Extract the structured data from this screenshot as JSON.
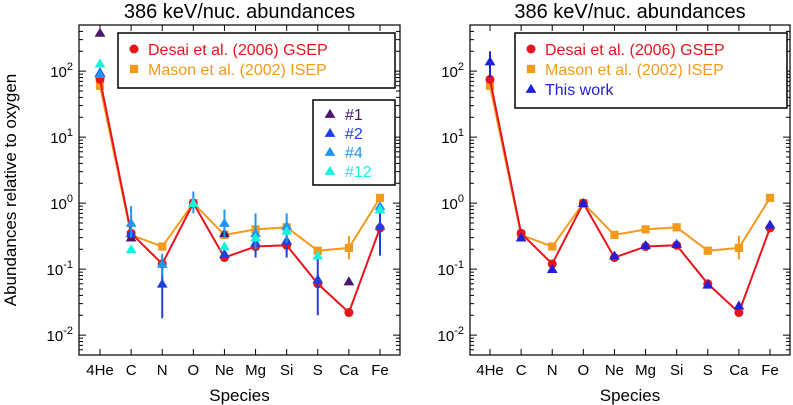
{
  "chart_data": [
    {
      "type": "scatter",
      "title": "386 keV/nuc. abundances",
      "xlabel": "Species",
      "ylabel": "Abundances relative to oxygen",
      "yscale": "log",
      "ylim": [
        0.005,
        500
      ],
      "yticks": [
        {
          "value": 0.01,
          "base": "10",
          "exp": "-2"
        },
        {
          "value": 0.1,
          "base": "10",
          "exp": "-1"
        },
        {
          "value": 1,
          "base": "10",
          "exp": "0"
        },
        {
          "value": 10,
          "base": "10",
          "exp": "1"
        },
        {
          "value": 100,
          "base": "10",
          "exp": "2"
        }
      ],
      "categories": [
        "4He",
        "C",
        "N",
        "O",
        "Ne",
        "Mg",
        "Si",
        "S",
        "Ca",
        "Fe"
      ],
      "legend_main": "top-right",
      "legend_events": "right",
      "series": [
        {
          "name": "Desai et al. (2006) GSEP",
          "color": "#e8141c",
          "marker": "circle",
          "line": true,
          "legend": "main",
          "values": [
            75,
            0.35,
            0.12,
            1.0,
            0.15,
            0.22,
            0.23,
            0.06,
            0.022,
            0.42
          ]
        },
        {
          "name": "Mason et al. (2002) ISEP",
          "color": "#f39a1c",
          "marker": "square",
          "line": true,
          "legend": "main",
          "values": [
            60,
            0.33,
            0.22,
            1.0,
            0.33,
            0.4,
            0.43,
            0.19,
            0.21,
            1.2
          ],
          "errors": [
            null,
            null,
            null,
            null,
            null,
            null,
            null,
            null,
            [
              0.14,
              0.32
            ],
            null
          ]
        },
        {
          "name": "#1",
          "color": "#4a1670",
          "marker": "triangle",
          "line": false,
          "legend": "events",
          "values": [
            380,
            0.3,
            null,
            null,
            0.35,
            null,
            0.27,
            null,
            0.065,
            null
          ]
        },
        {
          "name": "#2",
          "color": "#1f3fe0",
          "marker": "triangle",
          "line": false,
          "legend": "events",
          "values": [
            95,
            0.35,
            0.06,
            1.0,
            0.17,
            0.25,
            0.27,
            0.07,
            null,
            0.45
          ],
          "errors": [
            null,
            null,
            [
              0.018,
              0.15
            ],
            null,
            null,
            [
              0.15,
              0.42
            ],
            [
              0.15,
              0.42
            ],
            [
              0.02,
              0.17
            ],
            null,
            [
              0.16,
              0.9
            ]
          ]
        },
        {
          "name": "#4",
          "color": "#1e95f0",
          "marker": "triangle",
          "line": false,
          "legend": "events",
          "values": [
            90,
            0.5,
            0.12,
            1.0,
            0.5,
            0.35,
            0.45,
            null,
            null,
            0.9
          ],
          "errors": [
            null,
            [
              0.3,
              0.9
            ],
            [
              0.08,
              0.17
            ],
            [
              0.7,
              1.5
            ],
            [
              0.3,
              0.8
            ],
            [
              0.2,
              0.7
            ],
            [
              0.25,
              0.7
            ],
            null,
            null,
            null
          ]
        },
        {
          "name": "#12",
          "color": "#18f0e0",
          "marker": "triangle",
          "line": false,
          "legend": "events",
          "values": [
            130,
            0.2,
            null,
            1.0,
            0.22,
            0.3,
            0.38,
            0.16,
            null,
            0.8
          ]
        }
      ]
    },
    {
      "type": "scatter",
      "title": "386 keV/nuc. abundances",
      "xlabel": "Species",
      "ylabel": "",
      "yscale": "log",
      "ylim": [
        0.005,
        500
      ],
      "yticks": [
        {
          "value": 0.01,
          "base": "10",
          "exp": "-2"
        },
        {
          "value": 0.1,
          "base": "10",
          "exp": "-1"
        },
        {
          "value": 1,
          "base": "10",
          "exp": "0"
        },
        {
          "value": 10,
          "base": "10",
          "exp": "1"
        },
        {
          "value": 100,
          "base": "10",
          "exp": "2"
        }
      ],
      "categories": [
        "4He",
        "C",
        "N",
        "O",
        "Ne",
        "Mg",
        "Si",
        "S",
        "Ca",
        "Fe"
      ],
      "legend_main": "top-right",
      "series": [
        {
          "name": "Desai et al. (2006) GSEP",
          "color": "#e8141c",
          "marker": "circle",
          "line": true,
          "legend": "main",
          "values": [
            75,
            0.35,
            0.12,
            1.0,
            0.15,
            0.22,
            0.23,
            0.06,
            0.022,
            0.42
          ]
        },
        {
          "name": "Mason et al. (2002) ISEP",
          "color": "#f39a1c",
          "marker": "square",
          "line": true,
          "legend": "main",
          "values": [
            60,
            0.33,
            0.22,
            1.0,
            0.33,
            0.4,
            0.43,
            0.19,
            0.21,
            1.2
          ],
          "errors": [
            null,
            null,
            null,
            null,
            null,
            null,
            null,
            null,
            [
              0.14,
              0.32
            ],
            null
          ]
        },
        {
          "name": "This work",
          "color": "#2020d8",
          "marker": "triangle",
          "line": false,
          "legend": "main",
          "values": [
            140,
            0.3,
            0.1,
            1.0,
            0.16,
            0.23,
            0.24,
            0.058,
            0.028,
            0.47
          ],
          "errors": [
            [
              80,
              200
            ],
            null,
            null,
            null,
            null,
            null,
            null,
            null,
            null,
            null
          ]
        }
      ]
    }
  ]
}
